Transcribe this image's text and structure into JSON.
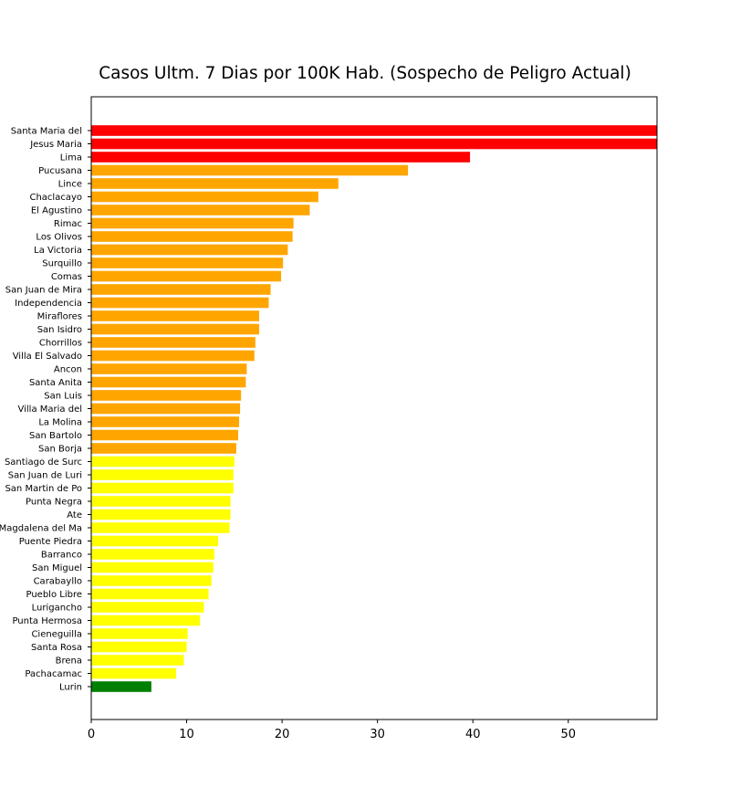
{
  "chart_data": {
    "type": "bar",
    "orientation": "horizontal",
    "title": "Casos Ultm. 7 Dias por 100K Hab. (Sospecho de Peligro Actual)",
    "xlabel": "",
    "ylabel": "",
    "xlim": [
      0,
      59.3
    ],
    "x_ticks": [
      "0",
      "10",
      "20",
      "30",
      "40",
      "50"
    ],
    "grid": false,
    "categories": [
      "Santa Maria del ",
      "Jesus Maria",
      "Lima",
      "Pucusana",
      "Lince",
      "Chaclacayo",
      "El Agustino",
      "Rimac",
      "Los Olivos",
      "La Victoria",
      "Surquillo",
      "Comas",
      "San Juan de Mira",
      "Independencia",
      "Miraflores",
      "San Isidro",
      "Chorrillos",
      "Villa El Salvado",
      "Ancon",
      "Santa Anita",
      "San Luis",
      "Villa Maria del ",
      "La Molina",
      "San Bartolo",
      "San Borja",
      "Santiago de Surc",
      "San Juan de Luri",
      "San Martin de Po",
      "Punta Negra",
      "Ate",
      "Magdalena del Ma",
      "Puente Piedra",
      "Barranco",
      "San Miguel",
      "Carabayllo",
      "Pueblo Libre",
      "Lurigancho",
      "Punta Hermosa",
      "Cieneguilla",
      "Santa Rosa",
      "Brena",
      "Pachacamac",
      "Lurin"
    ],
    "values": [
      59.3,
      59.3,
      39.7,
      33.2,
      25.9,
      23.8,
      22.9,
      21.2,
      21.1,
      20.6,
      20.1,
      19.9,
      18.8,
      18.6,
      17.6,
      17.6,
      17.2,
      17.1,
      16.3,
      16.2,
      15.7,
      15.6,
      15.5,
      15.4,
      15.2,
      15.0,
      14.9,
      14.9,
      14.6,
      14.6,
      14.5,
      13.3,
      12.9,
      12.8,
      12.6,
      12.3,
      11.8,
      11.4,
      10.1,
      10.0,
      9.7,
      8.9,
      6.3
    ],
    "colors": [
      "#ff0000",
      "#ff0000",
      "#ff0000",
      "#ffa500",
      "#ffa500",
      "#ffa500",
      "#ffa500",
      "#ffa500",
      "#ffa500",
      "#ffa500",
      "#ffa500",
      "#ffa500",
      "#ffa500",
      "#ffa500",
      "#ffa500",
      "#ffa500",
      "#ffa500",
      "#ffa500",
      "#ffa500",
      "#ffa500",
      "#ffa500",
      "#ffa500",
      "#ffa500",
      "#ffa500",
      "#ffa500",
      "#ffff00",
      "#ffff00",
      "#ffff00",
      "#ffff00",
      "#ffff00",
      "#ffff00",
      "#ffff00",
      "#ffff00",
      "#ffff00",
      "#ffff00",
      "#ffff00",
      "#ffff00",
      "#ffff00",
      "#ffff00",
      "#ffff00",
      "#ffff00",
      "#ffff00",
      "#008000"
    ]
  }
}
